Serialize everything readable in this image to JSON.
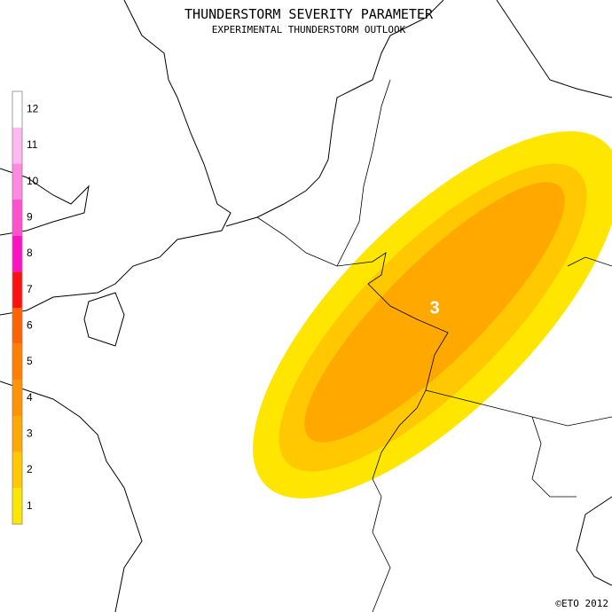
{
  "header": {
    "title": "THUNDERSTORM SEVERITY PARAMETER",
    "subtitle": "EXPERIMENTAL THUNDERSTORM OUTLOOK"
  },
  "legend": {
    "levels": [
      {
        "label": "1",
        "color": "#ffe600"
      },
      {
        "label": "2",
        "color": "#ffc800"
      },
      {
        "label": "3",
        "color": "#ffa800"
      },
      {
        "label": "4",
        "color": "#ff9400"
      },
      {
        "label": "5",
        "color": "#ff8000"
      },
      {
        "label": "6",
        "color": "#ff6400"
      },
      {
        "label": "7",
        "color": "#ff1010"
      },
      {
        "label": "8",
        "color": "#ff10c0"
      },
      {
        "label": "9",
        "color": "#ff50d0"
      },
      {
        "label": "10",
        "color": "#ff88e0"
      },
      {
        "label": "11",
        "color": "#ffb8f0"
      },
      {
        "label": "12",
        "color": "#ffffff"
      }
    ]
  },
  "map": {
    "level_label": "3",
    "credit": "©ETO 2012"
  }
}
